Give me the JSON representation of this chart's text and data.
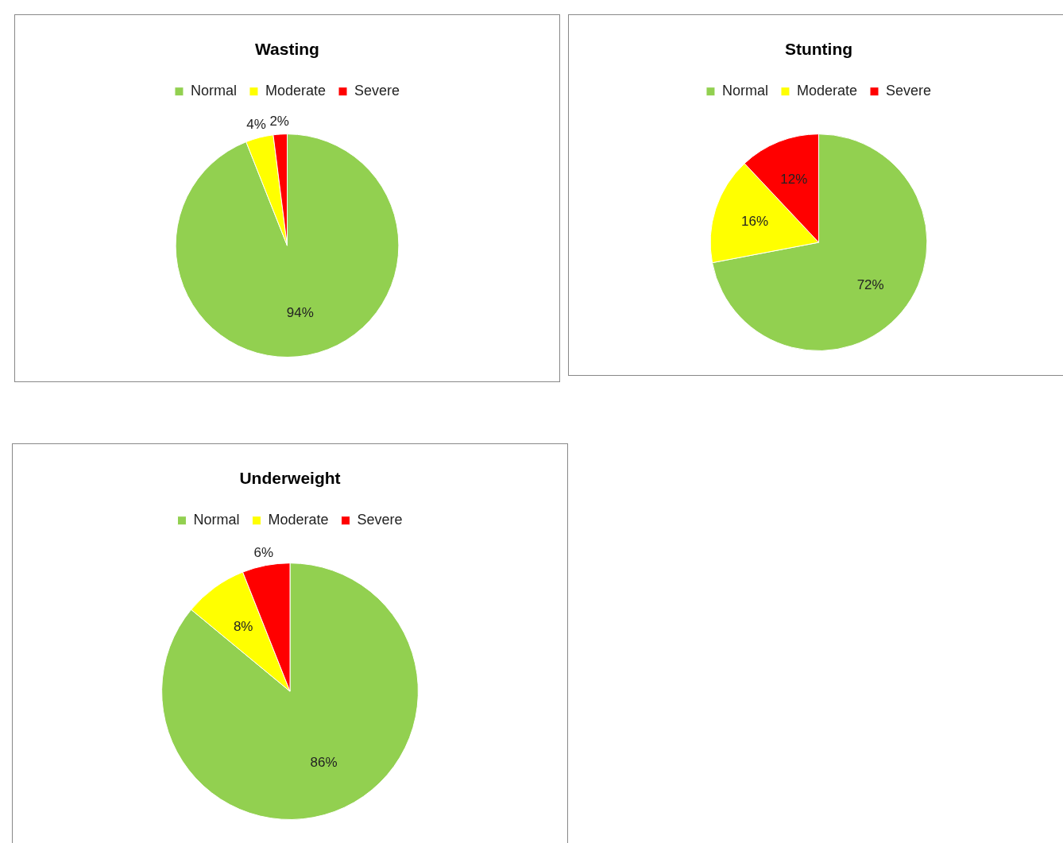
{
  "chart_data": [
    {
      "type": "pie",
      "title": "Wasting",
      "categories": [
        "Normal",
        "Moderate",
        "Severe"
      ],
      "values": [
        94,
        4,
        2
      ],
      "value_labels": [
        "94%",
        "4%",
        "2%"
      ],
      "colors": [
        "#92d050",
        "#ffff00",
        "#ff0000"
      ],
      "legend": "top"
    },
    {
      "type": "pie",
      "title": "Stunting",
      "categories": [
        "Normal",
        "Moderate",
        "Severe"
      ],
      "values": [
        72,
        16,
        12
      ],
      "value_labels": [
        "72%",
        "16%",
        "12%"
      ],
      "colors": [
        "#92d050",
        "#ffff00",
        "#ff0000"
      ],
      "legend": "top"
    },
    {
      "type": "pie",
      "title": "Underweight",
      "categories": [
        "Normal",
        "Moderate",
        "Severe"
      ],
      "values": [
        86,
        8,
        6
      ],
      "value_labels": [
        "86%",
        "8%",
        "6%"
      ],
      "colors": [
        "#92d050",
        "#ffff00",
        "#ff0000"
      ],
      "legend": "top"
    }
  ]
}
